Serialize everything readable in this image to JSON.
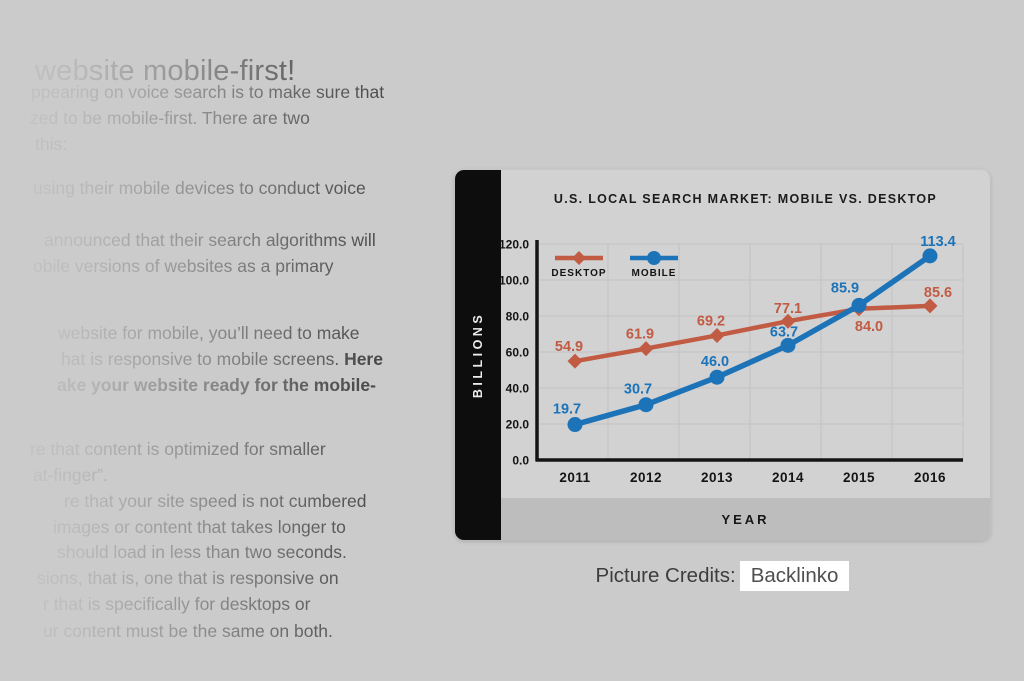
{
  "article": {
    "title": "website mobile-first!",
    "lines": [
      {
        "segments": [
          {
            "text": "ppearing on voice search is to make sure that",
            "bold": false
          }
        ]
      },
      {
        "segments": [
          {
            "text": "zed to be mobile-first. There are two",
            "bold": false
          }
        ]
      },
      {
        "segments": [
          {
            "text": "this:",
            "bold": false
          }
        ]
      },
      {
        "segments": [
          {
            "text": "using their mobile devices to conduct voice",
            "bold": false
          }
        ]
      },
      {
        "segments": [
          {
            "text": "announced that their search algorithms will",
            "bold": false
          }
        ]
      },
      {
        "segments": [
          {
            "text": "obile versions of websites as a primary",
            "bold": false
          }
        ]
      },
      {
        "segments": [
          {
            "text": "website for mobile, you’ll need to make",
            "bold": false
          }
        ]
      },
      {
        "segments": [
          {
            "text": "hat is responsive to mobile screens. ",
            "bold": false
          },
          {
            "text": "Here",
            "bold": true
          }
        ]
      },
      {
        "segments": [
          {
            "text": "ake your website ready for the mobile-",
            "bold": true
          }
        ]
      },
      {
        "segments": [
          {
            "text": "re that content is optimized for smaller",
            "bold": false
          }
        ]
      },
      {
        "segments": [
          {
            "text": "at-finger”.",
            "bold": false
          }
        ]
      },
      {
        "segments": [
          {
            "text": "re that your site speed is not cumbered",
            "bold": false
          }
        ]
      },
      {
        "segments": [
          {
            "text": "images or content that takes longer to",
            "bold": false
          }
        ]
      },
      {
        "segments": [
          {
            "text": "should load in less than two seconds.",
            "bold": false
          }
        ]
      },
      {
        "segments": [
          {
            "text": "sions, that is, one that is responsive on",
            "bold": false
          }
        ]
      },
      {
        "segments": [
          {
            "text": "r that is specifically for desktops or",
            "bold": false
          }
        ]
      },
      {
        "segments": [
          {
            "text": "ur content must be the same on both.",
            "bold": false
          }
        ]
      }
    ]
  },
  "credits": {
    "label": "Picture Credits:",
    "link_text": "Backlinko"
  },
  "chart_data": {
    "type": "line",
    "title": "U.S. LOCAL SEARCH MARKET: MOBILE VS. DESKTOP",
    "xlabel": "YEAR",
    "ylabel": "BILLIONS",
    "categories": [
      "2011",
      "2012",
      "2013",
      "2014",
      "2015",
      "2016"
    ],
    "ylim": [
      0,
      120
    ],
    "y_tick_labels": [
      "0.0",
      "20.0",
      "40.0",
      "60.0",
      "80.0",
      "100.0",
      "120.0"
    ],
    "grid": true,
    "legend_position": "inside-top-left",
    "series": [
      {
        "name": "DESKTOP",
        "marker": "diamond",
        "color": "#c25b43",
        "values": [
          54.9,
          61.9,
          69.2,
          77.1,
          84.0,
          85.6
        ],
        "label_offsets": [
          [
            -6,
            -10
          ],
          [
            -6,
            -10
          ],
          [
            -6,
            -10
          ],
          [
            0,
            -8
          ],
          [
            10,
            22
          ],
          [
            8,
            -9
          ]
        ]
      },
      {
        "name": "MOBILE",
        "marker": "circle",
        "color": "#1d73b8",
        "values": [
          19.7,
          30.7,
          46.0,
          63.7,
          85.9,
          113.4
        ],
        "label_offsets": [
          [
            -8,
            -11
          ],
          [
            -8,
            -11
          ],
          [
            -2,
            -11
          ],
          [
            -4,
            -9
          ],
          [
            -14,
            -13
          ],
          [
            8,
            -10
          ]
        ]
      }
    ]
  },
  "colors": {
    "page_bg": "#cbcbcb",
    "card_bg": "#d2d2d2",
    "strip_bg": "#bdbdbd",
    "bar_bg": "#0d0d0d",
    "axis": "#141414",
    "grid": "#c3c3c3",
    "text": "#3f3f3f",
    "highlight_bg": "#ffffff"
  }
}
